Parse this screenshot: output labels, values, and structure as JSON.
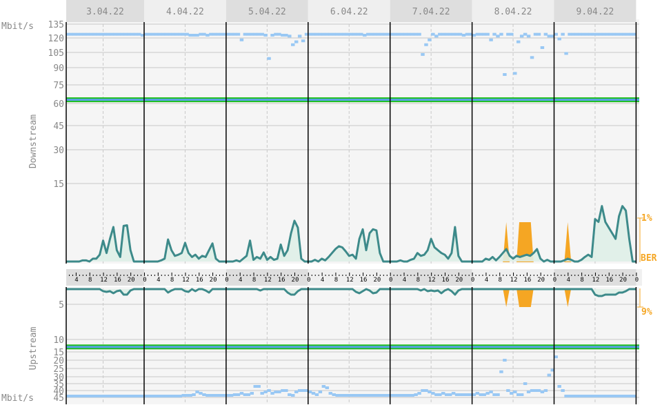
{
  "chart_data": {
    "type": "line",
    "dates": [
      "3.04.22",
      "4.04.22",
      "5.04.22",
      "6.04.22",
      "7.04.22",
      "8.04.22",
      "9.04.22"
    ],
    "hour_ticks": [
      "0",
      "4",
      "8",
      "12",
      "16",
      "20"
    ],
    "downstream": {
      "label": "Downstream",
      "unit": "Mbit/s",
      "yticks": [
        135,
        120,
        105,
        90,
        75,
        60,
        45,
        30,
        15
      ],
      "sync_rate": 63,
      "rate": [
        [
          124,
          124,
          124,
          124,
          124,
          124,
          124,
          124,
          124,
          124,
          124,
          124,
          124,
          124,
          124,
          124,
          124,
          124,
          124,
          124,
          124,
          124,
          124,
          123
        ],
        [
          124,
          124,
          124,
          124,
          124,
          124,
          124,
          124,
          124,
          124,
          124,
          124,
          124,
          123,
          123,
          123,
          124,
          124,
          123,
          124,
          124,
          124,
          124,
          124
        ],
        [
          124,
          124,
          124,
          124,
          118,
          124,
          124,
          124,
          124,
          124,
          124,
          123,
          99,
          123,
          124,
          124,
          123,
          123,
          122,
          113,
          116,
          122,
          117,
          124
        ],
        [
          124,
          124,
          124,
          124,
          124,
          124,
          124,
          124,
          124,
          124,
          124,
          124,
          124,
          124,
          124,
          124,
          123,
          124,
          124,
          124,
          124,
          124,
          124,
          124
        ],
        [
          124,
          124,
          124,
          124,
          124,
          124,
          124,
          124,
          124,
          103,
          113,
          118,
          124,
          122,
          124,
          124,
          124,
          124,
          124,
          124,
          124,
          123,
          124,
          124
        ],
        [
          123,
          124,
          124,
          124,
          124,
          118,
          124,
          122,
          124,
          84,
          124,
          124,
          85,
          116,
          122,
          124,
          122,
          100,
          124,
          124,
          110,
          124,
          122,
          122
        ],
        [
          124,
          119,
          124,
          104,
          124,
          124,
          124,
          124,
          124,
          124,
          124,
          124,
          124,
          124,
          124,
          124,
          124,
          124,
          124,
          124,
          124,
          124,
          124,
          124
        ]
      ],
      "errors": [
        [
          0,
          0,
          0,
          0,
          0,
          0,
          2,
          2,
          0,
          5,
          5,
          12,
          37,
          15,
          40,
          61,
          20,
          8,
          63,
          64,
          20,
          0,
          0,
          0
        ],
        [
          0,
          0,
          0,
          0,
          0,
          2,
          5,
          39,
          20,
          10,
          12,
          15,
          33,
          15,
          8,
          12,
          5,
          10,
          8,
          20,
          32,
          5,
          0,
          0
        ],
        [
          0,
          0,
          0,
          2,
          0,
          5,
          10,
          37,
          3,
          8,
          5,
          16,
          3,
          8,
          3,
          5,
          30,
          10,
          20,
          50,
          72,
          60,
          5,
          0
        ],
        [
          0,
          0,
          3,
          0,
          5,
          2,
          8,
          15,
          22,
          27,
          25,
          18,
          10,
          12,
          5,
          40,
          57,
          20,
          50,
          57,
          55,
          15,
          0,
          0
        ],
        [
          0,
          0,
          0,
          2,
          0,
          0,
          3,
          5,
          15,
          10,
          12,
          20,
          40,
          25,
          20,
          15,
          12,
          5,
          15,
          61,
          10,
          0,
          0,
          0
        ],
        [
          0,
          0,
          0,
          0,
          5,
          3,
          8,
          2,
          8,
          15,
          22,
          10,
          5,
          10,
          8,
          10,
          12,
          10,
          15,
          22,
          5,
          0,
          3,
          0
        ],
        [
          0,
          0,
          0,
          2,
          5,
          3,
          0,
          0,
          3,
          8,
          12,
          8,
          75,
          70,
          98,
          70,
          60,
          50,
          40,
          80,
          98,
          90,
          40,
          0
        ]
      ],
      "ber_label": "BER",
      "ber_max_label": "1%",
      "ber_events": [
        {
          "date": "8.04.22",
          "from_hour": 9,
          "to_hour": 11,
          "peak_percent": 1
        },
        {
          "date": "8.04.22",
          "from_hour": 13,
          "to_hour": 18,
          "peak_percent": 1
        },
        {
          "date": "9.04.22",
          "from_hour": 3,
          "to_hour": 5,
          "peak_percent": 1
        }
      ]
    },
    "upstream": {
      "label": "Upstream",
      "unit": "Mbit/s",
      "yticks": [
        5,
        10,
        15,
        20,
        25,
        30,
        35,
        40,
        45
      ],
      "sync_rate": 13,
      "rate": [
        [
          44,
          44,
          44,
          44,
          44,
          44,
          44,
          44,
          44,
          44,
          44,
          44,
          44,
          44,
          44,
          44,
          44,
          44,
          44,
          44,
          44,
          44,
          44,
          44
        ],
        [
          44,
          44,
          44,
          44,
          44,
          44,
          44,
          44,
          44,
          44,
          44,
          43.5,
          43.5,
          43.5,
          43,
          41,
          42,
          43,
          43.5,
          43.5,
          43.5,
          43.5,
          43.5,
          43.5
        ],
        [
          43.5,
          43.5,
          43,
          43,
          42,
          43,
          43,
          42,
          37,
          37,
          42,
          41,
          40,
          42,
          41,
          41,
          40,
          40,
          43,
          43.5,
          41,
          40,
          40,
          40
        ],
        [
          41,
          42,
          43,
          41,
          37,
          38,
          42,
          43,
          43.5,
          43.5,
          43.5,
          43.5,
          43.5,
          43.5,
          43.5,
          43.5,
          43.5,
          43.5,
          43.5,
          43.5,
          43.5,
          43.5,
          43.5,
          43.5
        ],
        [
          43.5,
          43.5,
          43.5,
          43.5,
          43.5,
          43.5,
          43.5,
          43,
          42,
          40,
          40,
          41,
          42,
          43,
          43,
          42,
          43,
          43,
          42,
          43,
          43,
          43,
          43,
          43
        ],
        [
          43,
          42,
          43,
          43,
          42,
          41,
          43,
          43,
          27,
          20,
          40,
          42,
          41,
          43,
          43,
          35,
          41,
          40,
          40,
          40,
          41,
          40,
          29,
          26
        ],
        [
          18,
          37,
          40,
          44,
          44,
          44,
          44,
          44,
          44,
          44,
          44,
          44,
          44,
          44,
          44,
          44,
          44,
          44,
          44,
          44,
          44,
          44,
          44,
          44
        ]
      ],
      "errors": [
        [
          0,
          0,
          0,
          0,
          0,
          0,
          0,
          0,
          0,
          0,
          0,
          0,
          3,
          4,
          3,
          6,
          3,
          2,
          8,
          8,
          2,
          0,
          0,
          0
        ],
        [
          0,
          0,
          0,
          0,
          0,
          0,
          0,
          5,
          2,
          0,
          0,
          0,
          3,
          4,
          0,
          3,
          0,
          0,
          2,
          5,
          0,
          0,
          0,
          0
        ],
        [
          0,
          0,
          0,
          0,
          0,
          0,
          0,
          0,
          0,
          0,
          2,
          0,
          0,
          0,
          0,
          0,
          0,
          0,
          5,
          8,
          8,
          3,
          0,
          0
        ],
        [
          0,
          0,
          0,
          0,
          0,
          0,
          0,
          0,
          0,
          0,
          0,
          0,
          0,
          0,
          4,
          6,
          3,
          0,
          2,
          6,
          5,
          0,
          0,
          0
        ],
        [
          0,
          0,
          0,
          0,
          0,
          0,
          0,
          0,
          0,
          2,
          0,
          3,
          2,
          3,
          2,
          6,
          2,
          0,
          3,
          8,
          2,
          0,
          0,
          0
        ],
        [
          0,
          0,
          0,
          0,
          0,
          0,
          0,
          0,
          0,
          0,
          0,
          0,
          0,
          0,
          0,
          0,
          0,
          0,
          0,
          0,
          0,
          0,
          0,
          0
        ],
        [
          0,
          0,
          0,
          0,
          0,
          0,
          0,
          0,
          0,
          0,
          0,
          0,
          8,
          10,
          10,
          8,
          8,
          8,
          8,
          5,
          5,
          3,
          0,
          0
        ]
      ],
      "ber_max_label": "9%",
      "ber_events": [
        {
          "date": "8.04.22",
          "from_hour": 9,
          "to_hour": 11,
          "peak_percent": 9
        },
        {
          "date": "8.04.22",
          "from_hour": 13,
          "to_hour": 18,
          "peak_percent": 9
        },
        {
          "date": "9.04.22",
          "from_hour": 3,
          "to_hour": 5,
          "peak_percent": 9
        }
      ]
    },
    "colors": {
      "rate": "#99c8f4",
      "errors": "#3d8a8a",
      "errors_fill": "#dff0e8",
      "ber": "#f5a623",
      "sync_green": "#1fbf1f",
      "sync_blue": "#5aa0e8",
      "axis_text": "#888888"
    }
  }
}
